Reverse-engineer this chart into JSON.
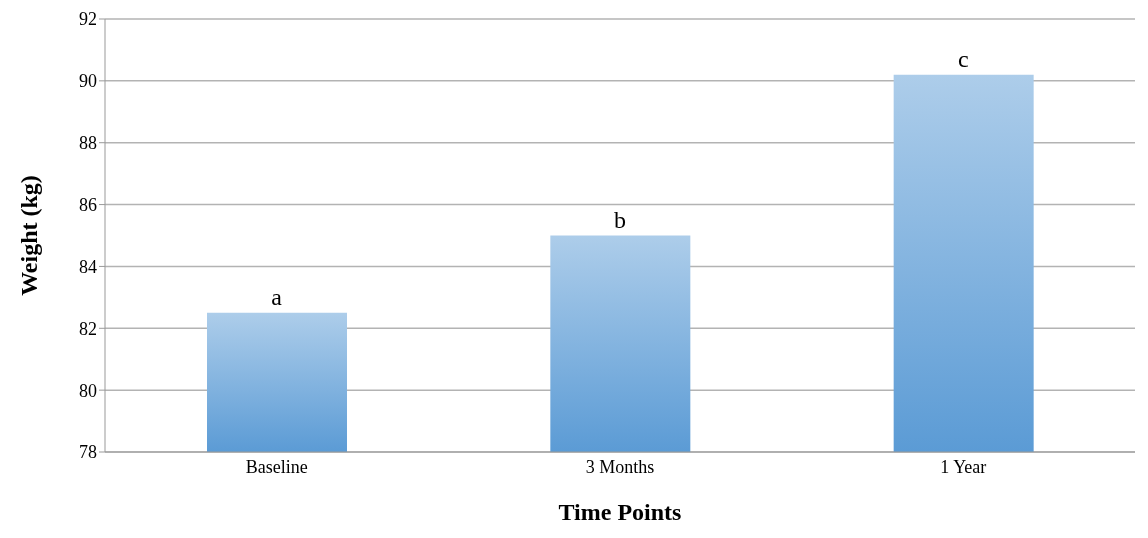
{
  "chart_data": {
    "type": "bar",
    "xlabel": "Time Points",
    "ylabel": "Weight (kg)",
    "categories": [
      "Baseline",
      "3 Months",
      "1 Year"
    ],
    "values": [
      82.5,
      85.0,
      90.2
    ],
    "color": "#5b9bd5",
    "ylim": [
      78,
      92
    ],
    "yticks": [
      78,
      80,
      82,
      84,
      86,
      88,
      90,
      92
    ],
    "grid": "y",
    "annotations": [
      {
        "text": "a",
        "x": "Baseline",
        "y": 82.5
      },
      {
        "text": "b",
        "x": "3 Months",
        "y": 85.0
      },
      {
        "text": "c",
        "x": "1 Year",
        "y": 90.2
      }
    ]
  }
}
